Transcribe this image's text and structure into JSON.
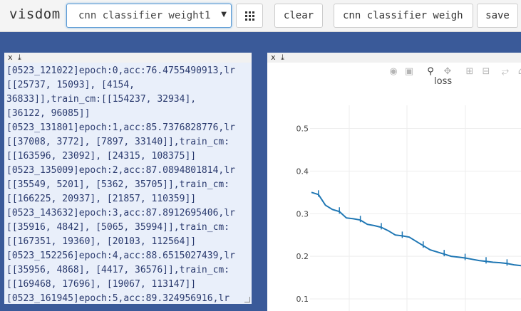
{
  "app": {
    "title": "visdom"
  },
  "env_select": {
    "value": "cnn classifier weight1",
    "caret": "▼"
  },
  "toolbar": {
    "clear_label": "clear",
    "view_value": "cnn classifier weigh",
    "save_label": "save"
  },
  "text_pane": {
    "close": "x",
    "download": "⤓",
    "lines": [
      "[0523_121022]epoch:0,acc:76.4755490913,lr",
      "[[25737, 15093], [4154,",
      "36833]],train_cm:[[154237, 32934],",
      "[36122, 96085]]",
      "[0523_131801]epoch:1,acc:85.7376828776,lr",
      "[[37008, 3772], [7897, 33140]],train_cm:",
      "[[163596, 23092], [24315, 108375]]",
      "[0523_135009]epoch:2,acc:87.0894801814,lr",
      "[[35549, 5201], [5362, 35705]],train_cm:",
      "[[166225, 20937], [21857, 110359]]",
      "[0523_143632]epoch:3,acc:87.8912695406,lr",
      "[[35916, 4842], [5065, 35994]],train_cm:",
      "[[167351, 19360], [20103, 112564]]",
      "[0523_152256]epoch:4,acc:88.6515027439,lr",
      "[[35956, 4868], [4417, 36576]],train_cm:",
      "[[169468, 17696], [19067, 113147]]",
      "[0523_161945]epoch:5,acc:89.324956916,lr"
    ]
  },
  "plot_pane": {
    "close": "x",
    "download": "⤓",
    "modebar": [
      "camera-icon",
      "save-icon",
      "zoom-icon",
      "pan-icon",
      "zoom-in-icon",
      "zoom-out-icon",
      "autoscale-icon",
      "reset-icon"
    ]
  },
  "chart_data": {
    "type": "line",
    "title": "loss",
    "xlabel": "",
    "ylabel": "",
    "ylim": [
      0.06,
      0.56
    ],
    "yticks": [
      0.1,
      0.2,
      0.3,
      0.4,
      0.5
    ],
    "grid": true,
    "line_color": "#1f77b4",
    "x": [
      0,
      1,
      2,
      3,
      4,
      5,
      6,
      7,
      8,
      9,
      10,
      11,
      12,
      13,
      14,
      15,
      16,
      17,
      18,
      19,
      20,
      21,
      22,
      23,
      24,
      25,
      26,
      27,
      28,
      29,
      30
    ],
    "series": [
      {
        "values": [
          0.35,
          0.345,
          0.32,
          0.31,
          0.305,
          0.29,
          0.288,
          0.285,
          0.275,
          0.272,
          0.268,
          0.26,
          0.25,
          0.248,
          0.245,
          0.235,
          0.225,
          0.215,
          0.21,
          0.205,
          0.2,
          0.198,
          0.196,
          0.193,
          0.19,
          0.188,
          0.186,
          0.185,
          0.183,
          0.18,
          0.178
        ]
      }
    ]
  }
}
